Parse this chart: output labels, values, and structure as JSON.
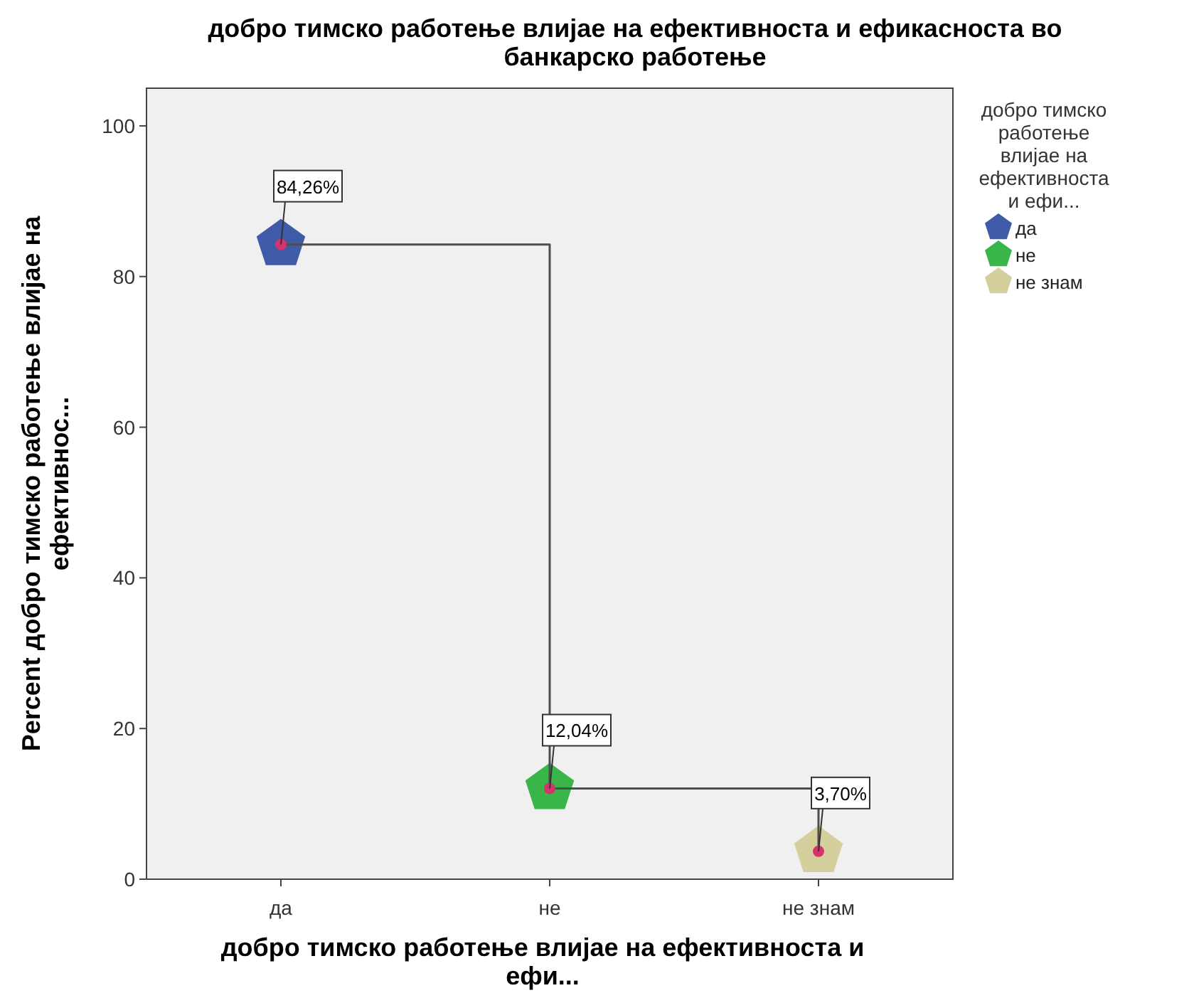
{
  "chart_data": {
    "type": "step",
    "title": "добро тимско работење влијае на ефективноста и ефикасноста во банкарско работење",
    "xlabel": "добро тимско работење влијае на ефективноста и ефи...",
    "ylabel": "Percent добро тимско работење влијае на ефективнос...",
    "legend_title": "добро тимско работење влијае на ефективноста и ефи...",
    "legend": "right",
    "categories": [
      "да",
      "не",
      "не знам"
    ],
    "ylim": [
      0,
      105
    ],
    "yticks": [
      0,
      20,
      40,
      60,
      80,
      100
    ],
    "grid": false,
    "series": [
      {
        "type": "scatter",
        "name": "да",
        "color": "#3f5ba8",
        "values": [
          84.26,
          null,
          null
        ]
      },
      {
        "type": "scatter",
        "name": "не",
        "color": "#3ab54a",
        "values": [
          null,
          12.04,
          null
        ]
      },
      {
        "type": "scatter",
        "name": "не знам",
        "color": "#d4cf9c",
        "values": [
          null,
          null,
          3.7
        ]
      },
      {
        "color": "#4d4d4d",
        "marker": "circle",
        "values": [
          84.26,
          12.04,
          3.7
        ],
        "value_labels": [
          "84,26%",
          "12,04%",
          "3,70%"
        ]
      }
    ]
  }
}
